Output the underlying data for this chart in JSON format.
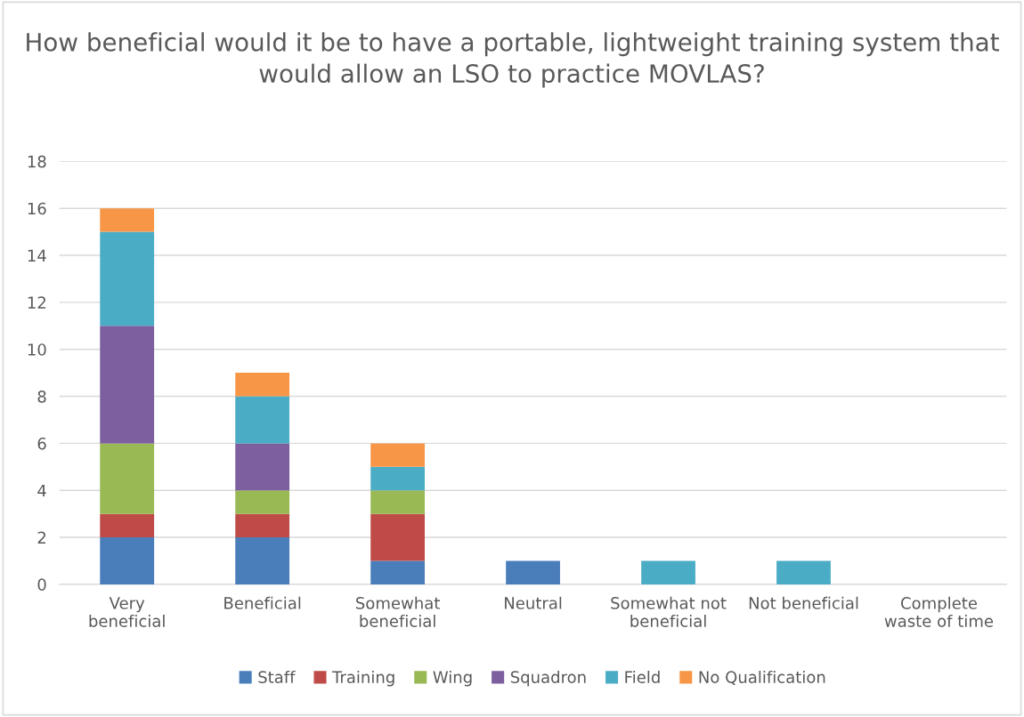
{
  "chart_data": {
    "type": "bar",
    "stacked": true,
    "title": "How beneficial would it be to have a portable, lightweight training system that would allow an LSO to practice MOVLAS?",
    "categories": [
      "Very beneficial",
      "Beneficial",
      "Somewhat beneficial",
      "Neutral",
      "Somewhat not beneficial",
      "Not beneficial",
      "Complete waste of time"
    ],
    "series": [
      {
        "name": "Staff",
        "color": "#4a7ebb",
        "values": [
          2,
          2,
          1,
          1,
          0,
          0,
          0
        ]
      },
      {
        "name": "Training",
        "color": "#be4b48",
        "values": [
          1,
          1,
          2,
          0,
          0,
          0,
          0
        ]
      },
      {
        "name": "Wing",
        "color": "#98b954",
        "values": [
          3,
          1,
          1,
          0,
          0,
          0,
          0
        ]
      },
      {
        "name": "Squadron",
        "color": "#7d5fa0",
        "values": [
          5,
          2,
          0,
          0,
          0,
          0,
          0
        ]
      },
      {
        "name": "Field",
        "color": "#4bacc6",
        "values": [
          4,
          2,
          1,
          0,
          1,
          1,
          0
        ]
      },
      {
        "name": "No Qualification",
        "color": "#f79646",
        "values": [
          1,
          1,
          1,
          0,
          0,
          0,
          0
        ]
      }
    ],
    "ylim": [
      0,
      18
    ],
    "yticks": [
      0,
      2,
      4,
      6,
      8,
      10,
      12,
      14,
      16,
      18
    ],
    "grid": "y",
    "legend": "bottom"
  }
}
